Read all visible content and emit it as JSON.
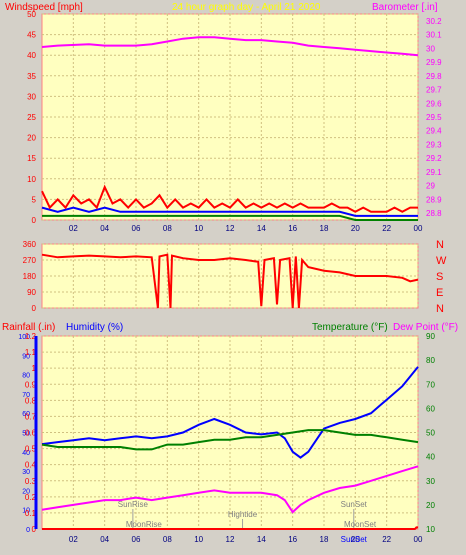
{
  "chart_data": [
    {
      "type": "line",
      "title": "24 hour graph day - April 21 2020",
      "left_axis_label": "Windspeed [mph]",
      "right_axis_label": "Barometer [.in]",
      "x_ticks": [
        "02",
        "04",
        "06",
        "08",
        "10",
        "12",
        "14",
        "16",
        "18",
        "20",
        "22",
        "00"
      ],
      "left_ticks": [
        "0",
        "5",
        "10",
        "15",
        "20",
        "25",
        "30",
        "35",
        "40",
        "45",
        "50"
      ],
      "right_ticks": [
        "28.8",
        "28.9",
        "29",
        "29.1",
        "29.2",
        "29.3",
        "29.4",
        "29.5",
        "29.6",
        "29.7",
        "29.8",
        "29.9",
        "30",
        "30.1",
        "30.2"
      ],
      "left_range": [
        0,
        50
      ],
      "right_range": [
        28.75,
        30.25
      ],
      "x_range": [
        0,
        24
      ],
      "series": [
        {
          "color": "#ff00ff",
          "axis": "right",
          "points": [
            [
              0,
              30.01
            ],
            [
              1,
              30.02
            ],
            [
              3,
              30.03
            ],
            [
              4,
              30.02
            ],
            [
              5,
              30.02
            ],
            [
              6,
              30.02
            ],
            [
              7,
              30.03
            ],
            [
              8,
              30.05
            ],
            [
              9,
              30.07
            ],
            [
              10,
              30.08
            ],
            [
              11,
              30.08
            ],
            [
              12,
              30.07
            ],
            [
              13,
              30.06
            ],
            [
              14,
              30.06
            ],
            [
              15,
              30.05
            ],
            [
              16,
              30.04
            ],
            [
              17,
              30.02
            ],
            [
              18,
              30.01
            ],
            [
              19,
              30.0
            ],
            [
              20,
              29.99
            ],
            [
              21,
              29.98
            ],
            [
              22,
              29.97
            ],
            [
              23,
              29.96
            ],
            [
              24,
              29.95
            ]
          ]
        },
        {
          "color": "#ff0000",
          "axis": "left",
          "points": [
            [
              0,
              7
            ],
            [
              0.5,
              3
            ],
            [
              1,
              5
            ],
            [
              1.5,
              3
            ],
            [
              2,
              6
            ],
            [
              2.5,
              4
            ],
            [
              3,
              5
            ],
            [
              3.5,
              3
            ],
            [
              4,
              8
            ],
            [
              4.5,
              4
            ],
            [
              5,
              5
            ],
            [
              5.5,
              3
            ],
            [
              6,
              5
            ],
            [
              6.5,
              3
            ],
            [
              7,
              4
            ],
            [
              7.5,
              6
            ],
            [
              8,
              3
            ],
            [
              8.5,
              5
            ],
            [
              9,
              3
            ],
            [
              9.5,
              4
            ],
            [
              10,
              3
            ],
            [
              10.5,
              5
            ],
            [
              11,
              3
            ],
            [
              11.5,
              4
            ],
            [
              12,
              3
            ],
            [
              12.5,
              5
            ],
            [
              13,
              3
            ],
            [
              13.5,
              4
            ],
            [
              14,
              3
            ],
            [
              14.5,
              4
            ],
            [
              15,
              3
            ],
            [
              15.5,
              4
            ],
            [
              16,
              3
            ],
            [
              16.5,
              4
            ],
            [
              17,
              3
            ],
            [
              17.5,
              3
            ],
            [
              18,
              3
            ],
            [
              18.5,
              4
            ],
            [
              19,
              3
            ],
            [
              19.5,
              3
            ],
            [
              20,
              2
            ],
            [
              20.5,
              3
            ],
            [
              21,
              2
            ],
            [
              21.5,
              2
            ],
            [
              22,
              2
            ],
            [
              22.5,
              3
            ],
            [
              23,
              2
            ],
            [
              23.5,
              3
            ],
            [
              24,
              3
            ]
          ]
        },
        {
          "color": "#0000ff",
          "axis": "left",
          "points": [
            [
              0,
              3
            ],
            [
              1,
              2
            ],
            [
              2,
              3
            ],
            [
              3,
              2
            ],
            [
              4,
              3
            ],
            [
              5,
              2
            ],
            [
              6,
              2
            ],
            [
              7,
              2
            ],
            [
              8,
              2
            ],
            [
              9,
              2
            ],
            [
              10,
              2
            ],
            [
              11,
              2
            ],
            [
              12,
              2
            ],
            [
              13,
              2
            ],
            [
              14,
              2
            ],
            [
              15,
              2
            ],
            [
              16,
              2
            ],
            [
              17,
              2
            ],
            [
              18,
              2
            ],
            [
              19,
              2
            ],
            [
              20,
              1
            ],
            [
              21,
              1
            ],
            [
              22,
              1
            ],
            [
              23,
              1
            ],
            [
              24,
              1
            ]
          ]
        },
        {
          "color": "#008000",
          "axis": "left",
          "points": [
            [
              0,
              1
            ],
            [
              1,
              1
            ],
            [
              2,
              1
            ],
            [
              3,
              1
            ],
            [
              4,
              1
            ],
            [
              5,
              1
            ],
            [
              6,
              1
            ],
            [
              7,
              1
            ],
            [
              8,
              1
            ],
            [
              9,
              1
            ],
            [
              10,
              1
            ],
            [
              11,
              1
            ],
            [
              12,
              1
            ],
            [
              13,
              1
            ],
            [
              14,
              1
            ],
            [
              15,
              1
            ],
            [
              16,
              1
            ],
            [
              17,
              1
            ],
            [
              18,
              1
            ],
            [
              19,
              1
            ],
            [
              20,
              0
            ],
            [
              21,
              0
            ],
            [
              22,
              0
            ],
            [
              23,
              0
            ],
            [
              24,
              0
            ]
          ]
        }
      ]
    },
    {
      "type": "line",
      "left_ticks": [
        "0",
        "90",
        "180",
        "270",
        "360"
      ],
      "right_ticks": [
        "N",
        "W",
        "S",
        "E",
        "N"
      ],
      "left_range": [
        0,
        360
      ],
      "x_range": [
        0,
        24
      ],
      "series": [
        {
          "color": "#ff0000",
          "points": [
            [
              0,
              300
            ],
            [
              1,
              285
            ],
            [
              2,
              290
            ],
            [
              3,
              295
            ],
            [
              4,
              290
            ],
            [
              5,
              285
            ],
            [
              6,
              290
            ],
            [
              7,
              285
            ],
            [
              7.4,
              0
            ],
            [
              7.5,
              290
            ],
            [
              8,
              300
            ],
            [
              8.2,
              0
            ],
            [
              8.3,
              295
            ],
            [
              9,
              280
            ],
            [
              10,
              270
            ],
            [
              11,
              270
            ],
            [
              12,
              280
            ],
            [
              13,
              270
            ],
            [
              13.8,
              260
            ],
            [
              14,
              10
            ],
            [
              14.2,
              270
            ],
            [
              14.8,
              280
            ],
            [
              15,
              20
            ],
            [
              15.2,
              270
            ],
            [
              15.8,
              280
            ],
            [
              16,
              0
            ],
            [
              16.2,
              290
            ],
            [
              16.4,
              0
            ],
            [
              16.6,
              270
            ],
            [
              17,
              230
            ],
            [
              18,
              210
            ],
            [
              19,
              200
            ],
            [
              20,
              180
            ],
            [
              21,
              180
            ],
            [
              22,
              180
            ],
            [
              23,
              170
            ],
            [
              23.5,
              150
            ],
            [
              24,
              160
            ]
          ]
        }
      ]
    },
    {
      "type": "line",
      "left_labels": [
        "Rainfall (.in)",
        "Humidity (%)"
      ],
      "right_labels": [
        "Temperature (°F)",
        "Dew Point (°F)"
      ],
      "humidity_ticks": [
        "0",
        "10",
        "20",
        "30",
        "40",
        "50",
        "60",
        "70",
        "80",
        "90",
        "100"
      ],
      "rain_ticks": [
        "0",
        "0.1",
        "0.2",
        "0.3",
        "0.4",
        "0.5",
        "0.6",
        "0.7",
        "0.8",
        "0.9",
        "1",
        "1.1",
        "1.2"
      ],
      "temp_ticks": [
        "10",
        "20",
        "30",
        "40",
        "50",
        "60",
        "70",
        "80",
        "90"
      ],
      "humidity_range": [
        0,
        100
      ],
      "rain_range": [
        0,
        1.2
      ],
      "temp_range": [
        10,
        90
      ],
      "x_range": [
        0,
        24
      ],
      "annotations": [
        {
          "text": "SunRise",
          "x": 5.8,
          "row": "upper"
        },
        {
          "text": "MoonRise",
          "x": 6.5,
          "row": "lower"
        },
        {
          "text": "Hightide",
          "x": 12.8,
          "row": "middle"
        },
        {
          "text": "SunSet",
          "x": 19.9,
          "row": "upper"
        },
        {
          "text": "MoonSet",
          "x": 20.3,
          "row": "lower"
        },
        {
          "text": "SunSet",
          "x": 19.9,
          "row": "axis"
        }
      ],
      "series": [
        {
          "name": "Humidity (%)",
          "color": "#0000ff",
          "axis": "humidity",
          "points": [
            [
              0,
              44
            ],
            [
              1,
              45
            ],
            [
              2,
              46
            ],
            [
              3,
              47
            ],
            [
              4,
              46
            ],
            [
              5,
              47
            ],
            [
              6,
              48
            ],
            [
              7,
              47
            ],
            [
              8,
              48
            ],
            [
              9,
              50
            ],
            [
              10,
              54
            ],
            [
              11,
              57
            ],
            [
              12,
              54
            ],
            [
              13,
              50
            ],
            [
              14,
              49
            ],
            [
              15,
              50
            ],
            [
              15.5,
              47
            ],
            [
              16,
              40
            ],
            [
              16.5,
              37
            ],
            [
              17,
              40
            ],
            [
              18,
              52
            ],
            [
              19,
              55
            ],
            [
              20,
              57
            ],
            [
              21,
              60
            ],
            [
              22,
              67
            ],
            [
              23,
              74
            ],
            [
              24,
              84
            ]
          ]
        },
        {
          "name": "Temperature (°F)",
          "color": "#008000",
          "axis": "temp",
          "points": [
            [
              0,
              45
            ],
            [
              1,
              44
            ],
            [
              2,
              44
            ],
            [
              3,
              44
            ],
            [
              4,
              44
            ],
            [
              5,
              44
            ],
            [
              6,
              43
            ],
            [
              7,
              43
            ],
            [
              8,
              45
            ],
            [
              9,
              45
            ],
            [
              10,
              46
            ],
            [
              11,
              47
            ],
            [
              12,
              47
            ],
            [
              13,
              48
            ],
            [
              14,
              48
            ],
            [
              15,
              49
            ],
            [
              16,
              50
            ],
            [
              17,
              51
            ],
            [
              18,
              51
            ],
            [
              19,
              50
            ],
            [
              20,
              49
            ],
            [
              21,
              49
            ],
            [
              22,
              48
            ],
            [
              23,
              47
            ],
            [
              24,
              46
            ]
          ]
        },
        {
          "name": "Dew Point (°F)",
          "color": "#ff00ff",
          "axis": "temp",
          "points": [
            [
              0,
              18
            ],
            [
              1,
              19
            ],
            [
              2,
              20
            ],
            [
              3,
              21
            ],
            [
              4,
              22
            ],
            [
              5,
              22
            ],
            [
              6,
              23
            ],
            [
              7,
              22
            ],
            [
              8,
              23
            ],
            [
              9,
              24
            ],
            [
              10,
              25
            ],
            [
              11,
              26
            ],
            [
              12,
              25
            ],
            [
              13,
              25
            ],
            [
              14,
              25
            ],
            [
              15,
              24
            ],
            [
              15.5,
              22
            ],
            [
              16,
              17
            ],
            [
              16.5,
              20
            ],
            [
              17,
              22
            ],
            [
              18,
              25
            ],
            [
              19,
              27
            ],
            [
              20,
              28
            ],
            [
              21,
              30
            ],
            [
              22,
              32
            ],
            [
              23,
              34
            ],
            [
              24,
              36
            ]
          ]
        },
        {
          "name": "Rainfall (.in)",
          "color": "#ff0000",
          "axis": "rain",
          "points": [
            [
              0,
              0
            ],
            [
              23.8,
              0
            ],
            [
              23.9,
              0.01
            ],
            [
              24,
              0.01
            ]
          ]
        }
      ]
    }
  ]
}
